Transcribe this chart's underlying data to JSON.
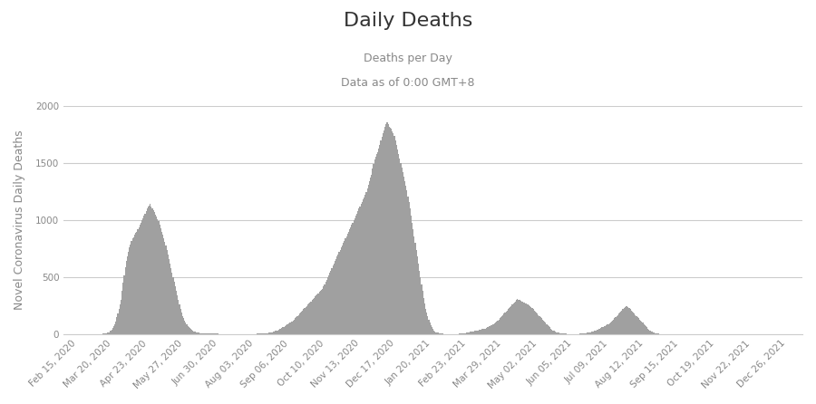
{
  "title": "Daily Deaths",
  "subtitle1": "Deaths per Day",
  "subtitle2": "Data as of 0:00 GMT+8",
  "ylabel": "Novel Coronavirus Daily Deaths",
  "bar_color": "#a0a0a0",
  "bg_color": "#ffffff",
  "grid_color": "#cccccc",
  "ylim": [
    0,
    2000
  ],
  "yticks": [
    0,
    500,
    1000,
    1500,
    2000
  ],
  "title_fontsize": 16,
  "subtitle_fontsize": 9,
  "ylabel_fontsize": 9,
  "tick_fontsize": 7.5,
  "tick_color": "#888888",
  "title_color": "#333333",
  "deaths": [
    0,
    0,
    0,
    0,
    0,
    0,
    0,
    0,
    0,
    0,
    0,
    0,
    0,
    0,
    0,
    0,
    0,
    0,
    0,
    0,
    0,
    0,
    0,
    0,
    0,
    0,
    0,
    0,
    0,
    0,
    0,
    0,
    1,
    1,
    2,
    2,
    3,
    4,
    5,
    6,
    8,
    10,
    14,
    16,
    20,
    30,
    40,
    56,
    70,
    87,
    115,
    148,
    180,
    220,
    260,
    300,
    380,
    450,
    520,
    590,
    640,
    680,
    720,
    760,
    790,
    820,
    840,
    850,
    870,
    890,
    900,
    920,
    940,
    960,
    980,
    1000,
    1020,
    1040,
    1060,
    1080,
    1100,
    1120,
    1130,
    1140,
    1120,
    1100,
    1090,
    1070,
    1050,
    1030,
    1010,
    990,
    960,
    930,
    900,
    870,
    840,
    810,
    780,
    740,
    700,
    660,
    620,
    580,
    540,
    500,
    460,
    420,
    380,
    340,
    300,
    260,
    220,
    190,
    160,
    140,
    120,
    100,
    85,
    70,
    60,
    52,
    45,
    38,
    32,
    27,
    23,
    20,
    17,
    15,
    13,
    12,
    11,
    10,
    10,
    9,
    9,
    8,
    8,
    7,
    7,
    7,
    6,
    6,
    6,
    5,
    5,
    5,
    5,
    4,
    4,
    4,
    4,
    4,
    4,
    4,
    4,
    4,
    3,
    3,
    3,
    3,
    3,
    3,
    3,
    3,
    3,
    2,
    2,
    2,
    2,
    2,
    2,
    2,
    2,
    2,
    2,
    2,
    3,
    3,
    3,
    3,
    4,
    4,
    4,
    5,
    5,
    5,
    6,
    6,
    7,
    7,
    8,
    8,
    9,
    10,
    12,
    14,
    16,
    18,
    20,
    23,
    26,
    29,
    32,
    36,
    40,
    45,
    50,
    55,
    60,
    66,
    72,
    78,
    84,
    90,
    96,
    102,
    108,
    114,
    120,
    130,
    140,
    150,
    160,
    170,
    180,
    190,
    200,
    210,
    220,
    230,
    240,
    250,
    260,
    270,
    280,
    290,
    300,
    310,
    320,
    330,
    340,
    350,
    360,
    370,
    380,
    390,
    400,
    420,
    440,
    460,
    480,
    500,
    520,
    540,
    560,
    580,
    600,
    620,
    640,
    660,
    680,
    700,
    720,
    740,
    760,
    780,
    800,
    820,
    840,
    860,
    880,
    900,
    920,
    940,
    960,
    980,
    1000,
    1020,
    1040,
    1060,
    1080,
    1100,
    1120,
    1140,
    1160,
    1180,
    1200,
    1220,
    1250,
    1280,
    1310,
    1340,
    1370,
    1400,
    1450,
    1490,
    1530,
    1560,
    1580,
    1600,
    1630,
    1660,
    1700,
    1730,
    1760,
    1790,
    1820,
    1840,
    1860,
    1840,
    1820,
    1810,
    1800,
    1780,
    1760,
    1740,
    1700,
    1660,
    1620,
    1580,
    1540,
    1500,
    1460,
    1420,
    1380,
    1340,
    1300,
    1260,
    1210,
    1160,
    1100,
    1040,
    980,
    920,
    860,
    800,
    740,
    680,
    620,
    560,
    500,
    440,
    380,
    320,
    270,
    220,
    190,
    160,
    130,
    100,
    80,
    60,
    45,
    32,
    25,
    20,
    16,
    13,
    10,
    8,
    6,
    5,
    4,
    3,
    3,
    2,
    2,
    2,
    2,
    2,
    2,
    2,
    2,
    3,
    3,
    3,
    4,
    5,
    6,
    7,
    8,
    9,
    10,
    12,
    14,
    16,
    18,
    20,
    22,
    24,
    26,
    28,
    30,
    32,
    34,
    36,
    38,
    40,
    42,
    44,
    46,
    48,
    50,
    55,
    60,
    65,
    70,
    75,
    80,
    85,
    90,
    95,
    100,
    110,
    120,
    130,
    140,
    150,
    160,
    170,
    180,
    190,
    200,
    210,
    220,
    230,
    240,
    250,
    260,
    270,
    280,
    290,
    300,
    310,
    305,
    300,
    295,
    290,
    285,
    280,
    275,
    270,
    265,
    260,
    255,
    250,
    240,
    230,
    220,
    210,
    200,
    190,
    180,
    170,
    160,
    150,
    140,
    130,
    120,
    110,
    100,
    90,
    80,
    70,
    60,
    50,
    42,
    35,
    30,
    25,
    20,
    18,
    16,
    14,
    12,
    10,
    9,
    8,
    7,
    6,
    5,
    4,
    3,
    3,
    2,
    2,
    2,
    2,
    2,
    2,
    3,
    3,
    4,
    5,
    6,
    7,
    8,
    9,
    10,
    12,
    14,
    16,
    18,
    20,
    22,
    25,
    28,
    31,
    34,
    37,
    40,
    45,
    50,
    55,
    60,
    65,
    70,
    75,
    80,
    85,
    90,
    95,
    100,
    110,
    120,
    130,
    140,
    150,
    160,
    170,
    180,
    190,
    200,
    210,
    220,
    230,
    240,
    250,
    250,
    240,
    230,
    220,
    210,
    200,
    190,
    180,
    170,
    160,
    150,
    140,
    130,
    120,
    110,
    100,
    90,
    80,
    70,
    60,
    50,
    42,
    35,
    28,
    22,
    18,
    14,
    10,
    8,
    6,
    5,
    4,
    3
  ],
  "start_date": "2020-02-02"
}
